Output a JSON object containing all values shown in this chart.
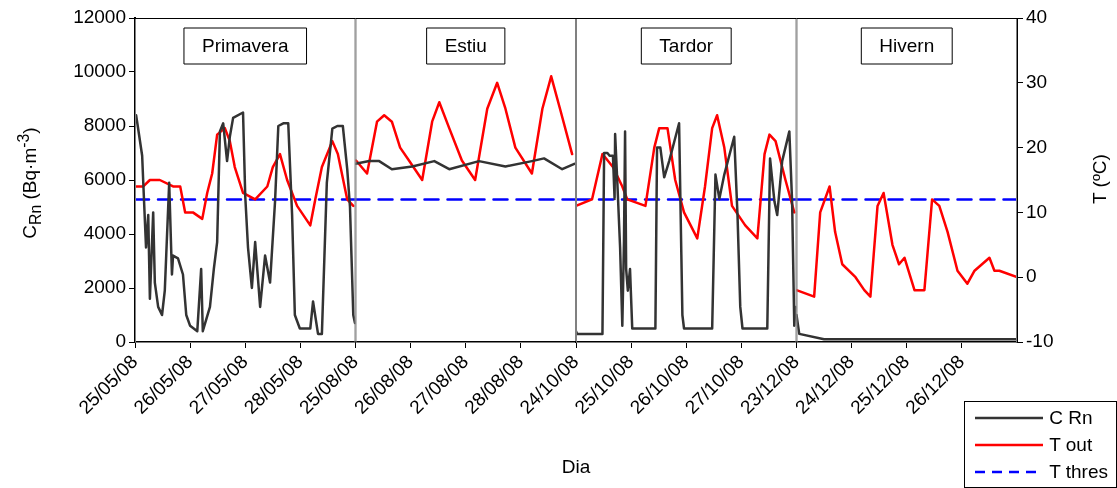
{
  "chart_data": [
    {
      "type": "line",
      "ylabel": "C$_{Rn}$  (Bq·m$^{-3}$)",
      "annotations": [
        "Primavera"
      ],
      "xlim": [
        "--05-25",
        "--05-29"
      ],
      "xticks": [
        {
          "value": "--05-25",
          "label": "25/05/08"
        },
        {
          "value": "--05-26",
          "label": "26/05/08"
        },
        {
          "value": "--05-27",
          "label": "27/05/08"
        },
        {
          "value": "--05-28",
          "label": "28/05/08"
        }
      ],
      "ylim": [
        0,
        12000
      ],
      "yticks": [
        0,
        2000,
        4000,
        6000,
        8000,
        10000,
        12000
      ],
      "y2lim": [
        -10,
        40
      ],
      "grid": false,
      "marker": "none",
      "series": [
        {
          "color": "#333333",
          "line_style": "solid",
          "x": [
            "--05-25T00:29",
            "--05-25T01:12",
            "--05-25T03:07",
            "--05-25T03:36",
            "--05-25T04:48",
            "--05-25T05:46",
            "--05-25T06:29",
            "--05-25T07:55",
            "--05-25T08:38",
            "--05-25T10:05",
            "--05-25T11:46",
            "--05-25T12:58",
            "--05-25T14:53",
            "--05-25T16:05",
            "--05-25T16:34",
            "--05-25T18:43",
            "--05-25T20:53",
            "--05-25T22:19",
            "--05-26T00:00",
            "--05-26T03:07",
            "--05-26T04:48",
            "--05-26T05:31",
            "--05-26T08:38",
            "--05-26T10:19",
            "--05-26T11:46",
            "--05-26T12:58",
            "--05-26T14:24",
            "--05-26T16:05",
            "--05-26T17:17",
            "--05-26T18:43",
            "--05-26T23:02",
            "--05-27T00:00",
            "--05-27T01:12",
            "--05-27T02:53",
            "--05-27T04:19",
            "--05-27T06:29",
            "--05-27T08:38",
            "--05-27T10:48",
            "--05-27T12:58",
            "--05-27T14:24",
            "--05-27T16:34",
            "--05-27T18:43",
            "--05-27T20:24",
            "--05-27T21:36",
            "--05-27T23:46",
            "--05-28T04:19",
            "--05-28T05:31",
            "--05-28T07:41",
            "--05-28T09:22",
            "--05-28T11:31",
            "--05-28T13:55",
            "--05-28T16:05",
            "--05-28T18:29",
            "--05-28T20:24",
            "--05-28T21:36",
            "--05-28T23:02",
            "--05-28T23:46"
          ],
          "values": [
            8400,
            8000,
            6900,
            5900,
            3500,
            4700,
            1600,
            4800,
            2200,
            1300,
            1000,
            1900,
            5900,
            2500,
            3200,
            3100,
            2500,
            1000,
            600,
            400,
            2700,
            400,
            1300,
            2700,
            3700,
            7800,
            8100,
            6700,
            7600,
            8300,
            8500,
            5400,
            3500,
            2000,
            3700,
            1300,
            3200,
            2200,
            5200,
            8000,
            8100,
            8100,
            4700,
            1000,
            500,
            500,
            1500,
            300,
            300,
            5900,
            7900,
            8000,
            8000,
            6400,
            5000,
            1000,
            700
          ]
        },
        {
          "color": "#ff0000",
          "axis": "y2",
          "line_style": "solid",
          "x": [
            "--05-25T00:29",
            "--05-25T03:36",
            "--05-25T06:29",
            "--05-25T10:48",
            "--05-25T16:34",
            "--05-25T19:41",
            "--05-25T21:50",
            "--05-26T01:12",
            "--05-26T05:17",
            "--05-26T07:26",
            "--05-26T09:36",
            "--05-26T11:46",
            "--05-26T15:07",
            "--05-26T17:17",
            "--05-26T19:26",
            "--05-26T23:02",
            "--05-27T04:19",
            "--05-27T09:36",
            "--05-27T12:00",
            "--05-27T15:07",
            "--05-27T18:14",
            "--05-27T22:34",
            "--05-28T04:19",
            "--05-28T06:29",
            "--05-28T09:22",
            "--05-28T13:55",
            "--05-28T16:19",
            "--05-28T20:24",
            "--05-28T23:02"
          ],
          "values": [
            14,
            14,
            15,
            15,
            14,
            14,
            10,
            10,
            9,
            13,
            16,
            22,
            23,
            21,
            17,
            13,
            12,
            14,
            17,
            19,
            15,
            11,
            8,
            12,
            17,
            21,
            19,
            12,
            11
          ]
        },
        {
          "color": "#0000ff",
          "axis": "y2",
          "line_style": "dashed",
          "x": [
            "--05-25",
            "--05-29"
          ],
          "values": [
            12,
            12
          ]
        }
      ]
    },
    {
      "type": "line",
      "annotations": [
        "Estiu"
      ],
      "xlim": [
        "--08-25",
        "--08-29"
      ],
      "xticks": [
        {
          "value": "--08-25",
          "label": "25/08/08"
        },
        {
          "value": "--08-26",
          "label": "26/08/08"
        },
        {
          "value": "--08-27",
          "label": "27/08/08"
        },
        {
          "value": "--08-28",
          "label": "28/08/08"
        }
      ],
      "ylim": [
        0,
        12000
      ],
      "y2lim": [
        -10,
        40
      ],
      "tick_labels": "x",
      "grid": false,
      "marker": "none",
      "series": [
        {
          "color": "#333333",
          "line_style": "solid",
          "x": [
            "--08-25T00:00",
            "--08-25T06:00",
            "--08-25T10:19",
            "--08-25T15:50",
            "--08-26T00:43",
            "--08-26T10:19",
            "--08-26T16:48",
            "--08-27T05:46",
            "--08-27T17:17",
            "--08-28T04:48",
            "--08-28T10:05",
            "--08-28T18:00",
            "--08-28T23:17"
          ],
          "values": [
            6600,
            6700,
            6700,
            6400,
            6500,
            6700,
            6400,
            6700,
            6500,
            6700,
            6800,
            6400,
            6600
          ]
        },
        {
          "color": "#ff0000",
          "axis": "y2",
          "line_style": "solid",
          "x": [
            "--08-25T00:14",
            "--08-25T05:02",
            "--08-25T09:22",
            "--08-25T12:29",
            "--08-25T15:50",
            "--08-25T19:26",
            "--08-25T23:17",
            "--08-26T05:02",
            "--08-26T09:22",
            "--08-26T12:29",
            "--08-26T16:48",
            "--08-26T22:19",
            "--08-27T04:05",
            "--08-27T09:22",
            "--08-27T13:41",
            "--08-27T17:17",
            "--08-27T21:36",
            "--08-28T04:48",
            "--08-28T09:22",
            "--08-28T13:12",
            "--08-28T17:02",
            "--08-28T22:19"
          ],
          "values": [
            18,
            16,
            24,
            25,
            24,
            20,
            18,
            15,
            24,
            27,
            23,
            18,
            15,
            26,
            30,
            26,
            20,
            16,
            26,
            31,
            26,
            19
          ]
        },
        {
          "color": "#0000ff",
          "axis": "y2",
          "line_style": "dashed",
          "x": [
            "--08-25",
            "--08-29"
          ],
          "values": [
            12,
            12
          ]
        }
      ]
    },
    {
      "type": "line",
      "xlabel": "Dia",
      "annotations": [
        "Tardor"
      ],
      "xlim": [
        "--10-24",
        "--10-28"
      ],
      "xticks": [
        {
          "value": "--10-24",
          "label": "24/10/08"
        },
        {
          "value": "--10-25",
          "label": "25/10/08"
        },
        {
          "value": "--10-26",
          "label": "26/10/08"
        },
        {
          "value": "--10-27",
          "label": "27/10/08"
        }
      ],
      "ylim": [
        0,
        12000
      ],
      "y2lim": [
        -10,
        40
      ],
      "tick_labels": "x",
      "grid": false,
      "marker": "none",
      "series": [
        {
          "color": "#333333",
          "line_style": "solid",
          "x": [
            "--10-24T00:00",
            "--10-24T00:29",
            "--10-24T11:31",
            "--10-24T12:14",
            "--10-24T13:41",
            "--10-24T14:38",
            "--10-24T16:05",
            "--10-24T16:48",
            "--10-24T17:02",
            "--10-24T18:00",
            "--10-24T19:12",
            "--10-24T20:10",
            "--10-24T20:53",
            "--10-24T21:22",
            "--10-24T21:50",
            "--10-24T22:34",
            "--10-24T23:31",
            "--10-25T00:29",
            "--10-25T10:34",
            "--10-25T11:17",
            "--10-25T12:43",
            "--10-25T14:24",
            "--10-25T16:34",
            "--10-25T18:43",
            "--10-25T20:53",
            "--10-25T22:19",
            "--10-25T23:02",
            "--10-26T11:17",
            "--10-26T12:43",
            "--10-26T14:24",
            "--10-26T16:34",
            "--10-26T20:53",
            "--10-26T22:19",
            "--10-26T23:31",
            "--10-27T00:29",
            "--10-27T11:17",
            "--10-27T12:29",
            "--10-27T14:24",
            "--10-27T15:36",
            "--10-27T17:46",
            "--10-27T20:53",
            "--10-27T22:05",
            "--10-27T23:02",
            "--10-27T23:31"
          ],
          "values": [
            400,
            300,
            300,
            7000,
            7000,
            6900,
            6900,
            5300,
            7700,
            5900,
            3500,
            600,
            3700,
            7800,
            2700,
            1900,
            2700,
            500,
            500,
            7200,
            7200,
            6100,
            6700,
            7400,
            8100,
            1000,
            500,
            500,
            6200,
            5300,
            6200,
            7600,
            4700,
            1300,
            500,
            500,
            6800,
            5200,
            4700,
            6700,
            7800,
            5200,
            600,
            1300
          ]
        },
        {
          "color": "#ff0000",
          "axis": "y2",
          "line_style": "solid",
          "x": [
            "--10-24T00:00",
            "--10-24T06:58",
            "--10-24T11:31",
            "--10-24T16:05",
            "--10-24T20:10",
            "--10-24T22:19",
            "--10-25T06:14",
            "--10-25T10:05",
            "--10-25T12:14",
            "--10-25T15:50",
            "--10-25T19:12",
            "--10-25T23:02",
            "--10-26T04:48",
            "--10-26T08:10",
            "--10-26T11:17",
            "--10-26T13:26",
            "--10-26T16:34",
            "--10-26T19:55",
            "--10-27T01:41",
            "--10-27T06:58",
            "--10-27T10:05",
            "--10-27T12:14",
            "--10-27T14:53",
            "--10-27T19:12",
            "--10-27T23:02"
          ],
          "values": [
            11,
            12,
            19,
            17,
            14,
            12,
            11,
            20,
            23,
            23,
            15,
            10,
            6,
            14,
            23,
            25,
            20,
            11,
            8,
            6,
            19,
            22,
            21,
            15,
            10
          ]
        },
        {
          "color": "#0000ff",
          "axis": "y2",
          "line_style": "dashed",
          "x": [
            "--10-24",
            "--10-28"
          ],
          "values": [
            12,
            12
          ]
        }
      ]
    },
    {
      "type": "line",
      "y2label": "T  (ºC)",
      "annotations": [
        "Hivern"
      ],
      "xlim": [
        "--12-23",
        "--12-27"
      ],
      "xticks": [
        {
          "value": "--12-23",
          "label": "23/12/08"
        },
        {
          "value": "--12-24",
          "label": "24/12/08"
        },
        {
          "value": "--12-25",
          "label": "25/12/08"
        },
        {
          "value": "--12-26",
          "label": "26/12/08"
        }
      ],
      "ylim": [
        0,
        12000
      ],
      "y2lim": [
        -10,
        40
      ],
      "y2ticks": [
        -10,
        0,
        10,
        20,
        30,
        40
      ],
      "grid": false,
      "marker": "none",
      "legend": "bottom right",
      "series": [
        {
          "name": "C Rn",
          "color": "#333333",
          "line_style": "solid",
          "x": [
            "--12-23T00:00",
            "--12-23T01:12",
            "--12-23T12:00",
            "--12-25T07:12",
            "--12-27T00:00"
          ],
          "values": [
            1000,
            300,
            100,
            100,
            100
          ]
        },
        {
          "name": "T out",
          "color": "#ff0000",
          "axis": "y2",
          "line_style": "solid",
          "x": [
            "--12-23T00:00",
            "--12-23T07:41",
            "--12-23T10:19",
            "--12-23T14:24",
            "--12-23T16:48",
            "--12-23T19:55",
            "--12-24T01:41",
            "--12-24T05:31",
            "--12-24T08:10",
            "--12-24T11:17",
            "--12-24T13:55",
            "--12-24T17:46",
            "--12-24T20:38",
            "--12-24T23:02",
            "--12-25T03:22",
            "--12-25T07:41",
            "--12-25T11:02",
            "--12-25T14:10",
            "--12-25T17:46",
            "--12-25T22:05",
            "--12-26T02:24",
            "--12-26T05:31",
            "--12-26T12:00",
            "--12-26T14:10",
            "--12-26T16:19",
            "--12-27T00:00"
          ],
          "values": [
            -2,
            -3,
            10,
            14,
            7,
            2,
            0,
            -2,
            -3,
            11,
            13,
            5,
            2,
            3,
            -2,
            -2,
            12,
            11,
            7,
            1,
            -1,
            1,
            3,
            1,
            1,
            0
          ]
        },
        {
          "name": "T thres",
          "color": "#0000ff",
          "axis": "y2",
          "line_style": "dashed",
          "x": [
            "--12-23",
            "--12-27"
          ],
          "values": [
            12,
            12
          ]
        }
      ]
    }
  ]
}
